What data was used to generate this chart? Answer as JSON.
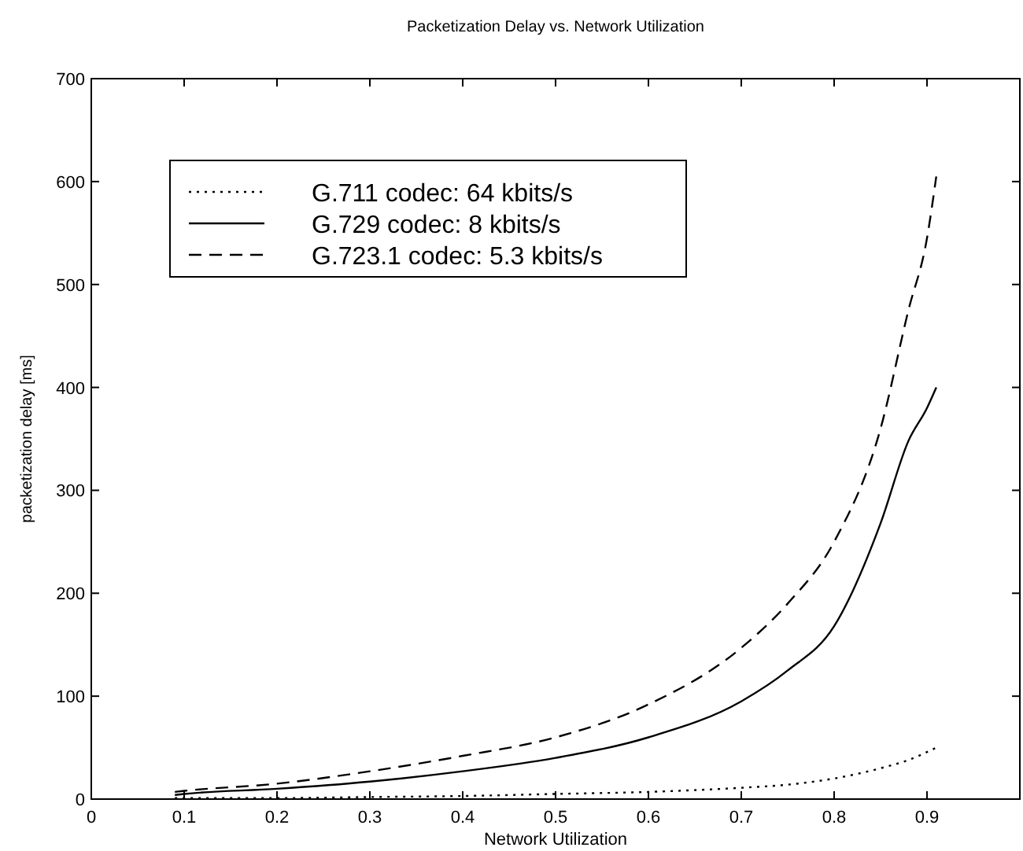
{
  "chart_data": {
    "type": "line",
    "title": "Packetization Delay vs. Network Utilization",
    "xlabel": "Network Utilization",
    "ylabel": "packetization delay [ms]",
    "xlim": [
      0,
      1
    ],
    "xticks": [
      0,
      0.1,
      0.2,
      0.3,
      0.4,
      0.5,
      0.6,
      0.7,
      0.8,
      0.9
    ],
    "ylim": [
      0,
      700
    ],
    "yticks": [
      0,
      100,
      200,
      300,
      400,
      500,
      600,
      700
    ],
    "grid": false,
    "legend": "top left",
    "series": [
      {
        "name": "G.711 codec: 64 kbits/s",
        "color": "#000000",
        "line_style": "dotted",
        "x": [
          0.09,
          0.2,
          0.3,
          0.4,
          0.5,
          0.6,
          0.7,
          0.75,
          0.8,
          0.85,
          0.88,
          0.91
        ],
        "values": [
          1,
          1,
          2,
          3,
          5,
          7,
          11,
          14,
          20,
          30,
          38,
          50
        ]
      },
      {
        "name": "G.729 codec: 8 kbits/s",
        "color": "#000000",
        "line_style": "solid",
        "x": [
          0.09,
          0.1,
          0.2,
          0.3,
          0.4,
          0.5,
          0.6,
          0.7,
          0.75,
          0.8,
          0.85,
          0.88,
          0.9,
          0.91
        ],
        "values": [
          4,
          5,
          10,
          17,
          27,
          40,
          60,
          95,
          125,
          168,
          268,
          348,
          380,
          400
        ]
      },
      {
        "name": "G.723.1 codec: 5.3 kbits/s",
        "color": "#000000",
        "line_style": "dashed",
        "x": [
          0.09,
          0.1,
          0.2,
          0.3,
          0.4,
          0.5,
          0.6,
          0.7,
          0.75,
          0.8,
          0.85,
          0.88,
          0.9,
          0.91
        ],
        "values": [
          7,
          8,
          15,
          27,
          42,
          60,
          92,
          147,
          190,
          250,
          360,
          475,
          545,
          605
        ]
      }
    ]
  }
}
